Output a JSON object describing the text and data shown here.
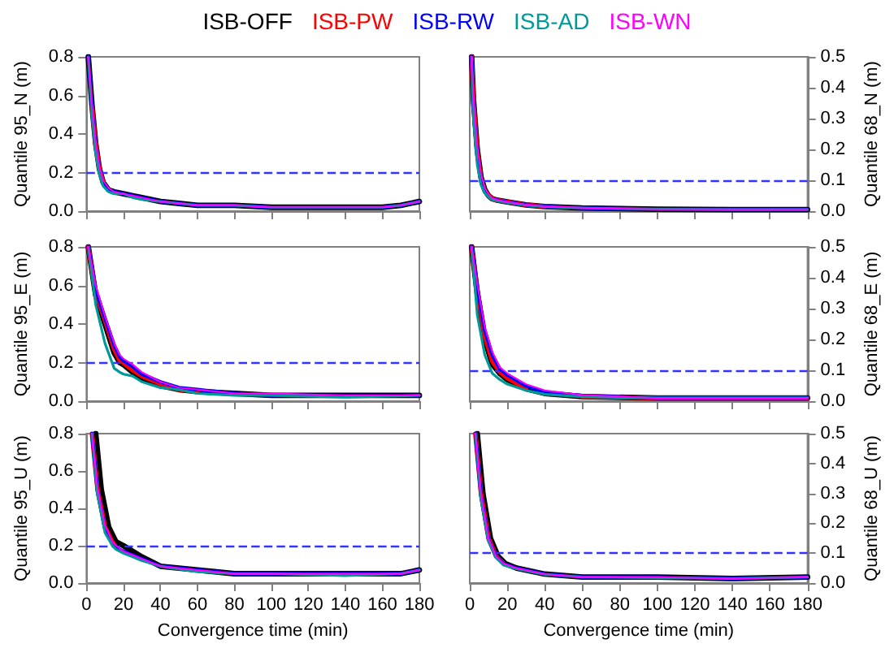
{
  "chart_data": [
    {
      "type": "line",
      "ylabel": "Quantile 95_N (m)",
      "xlim": [
        0,
        180
      ],
      "xticks": [
        0,
        20,
        40,
        60,
        80,
        100,
        120,
        140,
        160,
        180
      ],
      "ylim": [
        0,
        0.8
      ],
      "yticks": [
        {
          "value": 0,
          "label": "0.0"
        },
        {
          "value": 0.2,
          "label": "0.2"
        },
        {
          "value": 0.4,
          "label": "0.4"
        },
        {
          "value": 0.6,
          "label": "0.6"
        },
        {
          "value": 0.8,
          "label": "0.8"
        }
      ],
      "tick_labels": "y",
      "grid": false,
      "legend": "top",
      "line_style": "solid",
      "ref_lines": [
        {
          "axis": "y",
          "value": 0.2,
          "color": "#3333ff",
          "line_style": "dashed"
        }
      ],
      "series": [
        {
          "name": "ISB-OFF",
          "color": "#000000",
          "x": [
            1,
            3,
            5,
            7,
            9,
            12,
            15,
            20,
            25,
            30,
            40,
            50,
            60,
            80,
            100,
            120,
            140,
            160,
            170,
            180
          ],
          "values": [
            0.8,
            0.55,
            0.35,
            0.22,
            0.15,
            0.11,
            0.1,
            0.09,
            0.08,
            0.07,
            0.05,
            0.04,
            0.03,
            0.03,
            0.02,
            0.02,
            0.02,
            0.02,
            0.03,
            0.05
          ]
        },
        {
          "name": "ISB-PW",
          "color": "#ff0000",
          "x": [
            3,
            5,
            7,
            9
          ],
          "values": [
            0.54,
            0.34,
            0.22,
            0.15
          ]
        },
        {
          "name": "ISB-RW",
          "color": "#0000ff",
          "x": [
            1,
            3,
            5,
            7,
            9,
            12,
            15,
            20,
            25,
            30,
            40,
            50,
            60,
            80,
            100,
            120,
            140,
            160,
            170,
            180
          ],
          "values": [
            0.8,
            0.53,
            0.33,
            0.21,
            0.14,
            0.11,
            0.1,
            0.09,
            0.08,
            0.07,
            0.05,
            0.04,
            0.03,
            0.03,
            0.02,
            0.02,
            0.02,
            0.02,
            0.03,
            0.05
          ]
        },
        {
          "name": "ISB-AD",
          "color": "#009999",
          "x": [
            1,
            3,
            5,
            7,
            9,
            12,
            15,
            20,
            25,
            30,
            40,
            50,
            60,
            80,
            100,
            120,
            140,
            160,
            170,
            180
          ],
          "values": [
            0.8,
            0.5,
            0.3,
            0.19,
            0.13,
            0.1,
            0.09,
            0.09,
            0.07,
            0.06,
            0.05,
            0.04,
            0.03,
            0.03,
            0.02,
            0.02,
            0.02,
            0.02,
            0.03,
            0.05
          ]
        },
        {
          "name": "ISB-WN",
          "color": "#ff00ff",
          "x": [
            1,
            3,
            5,
            7,
            9,
            12,
            15,
            20,
            25,
            30,
            40,
            50,
            60,
            80,
            100,
            120,
            140,
            160,
            170,
            180
          ],
          "values": [
            0.8,
            0.56,
            0.36,
            0.23,
            0.16,
            0.12,
            0.1,
            0.09,
            0.08,
            0.07,
            0.05,
            0.04,
            0.03,
            0.03,
            0.02,
            0.02,
            0.02,
            0.02,
            0.03,
            0.05
          ]
        }
      ]
    },
    {
      "type": "line",
      "y2label": "Quantile 68_N (m)",
      "xlim": [
        0,
        180
      ],
      "xticks": [
        0,
        20,
        40,
        60,
        80,
        100,
        120,
        140,
        160,
        180
      ],
      "y2lim": [
        0,
        0.5
      ],
      "y2ticks": [
        {
          "value": 0,
          "label": "0.0"
        },
        {
          "value": 0.1,
          "label": "0.1"
        },
        {
          "value": 0.2,
          "label": "0.2"
        },
        {
          "value": 0.3,
          "label": "0.3"
        },
        {
          "value": 0.4,
          "label": "0.4"
        },
        {
          "value": 0.5,
          "label": "0.5"
        }
      ],
      "tick_labels": "y",
      "grid": false,
      "line_style": "solid",
      "ref_lines": [
        {
          "axis": "y2",
          "value": 0.1,
          "color": "#3333ff",
          "line_style": "dashed"
        }
      ],
      "series": [
        {
          "color": "#000000",
          "axis": "y2",
          "x": [
            1,
            2,
            4,
            6,
            8,
            10,
            12,
            15,
            20,
            30,
            40,
            60,
            80,
            100,
            140,
            180
          ],
          "values": [
            0.5,
            0.36,
            0.2,
            0.11,
            0.07,
            0.05,
            0.04,
            0.035,
            0.03,
            0.02,
            0.015,
            0.01,
            0.008,
            0.006,
            0.005,
            0.005
          ]
        },
        {
          "color": "#ff0000",
          "axis": "y2",
          "x": [
            1,
            2,
            4,
            6,
            8,
            10,
            12,
            15,
            20,
            30,
            40
          ],
          "values": [
            0.5,
            0.35,
            0.19,
            0.1,
            0.065,
            0.05,
            0.04,
            0.035,
            0.03,
            0.02,
            0.015
          ]
        },
        {
          "color": "#0000ff",
          "axis": "y2",
          "x": [
            1,
            2,
            4,
            6,
            8,
            10,
            12,
            15,
            20,
            30,
            40,
            60,
            80,
            100,
            140,
            180
          ],
          "values": [
            0.5,
            0.33,
            0.18,
            0.095,
            0.062,
            0.048,
            0.04,
            0.035,
            0.029,
            0.02,
            0.015,
            0.01,
            0.008,
            0.006,
            0.005,
            0.005
          ]
        },
        {
          "color": "#009999",
          "axis": "y2",
          "x": [
            1,
            2,
            4,
            6,
            8,
            10,
            12,
            15,
            20,
            30,
            40,
            60,
            80,
            100,
            140,
            180
          ],
          "values": [
            0.5,
            0.3,
            0.15,
            0.085,
            0.058,
            0.045,
            0.037,
            0.033,
            0.028,
            0.019,
            0.014,
            0.01,
            0.008,
            0.006,
            0.005,
            0.005
          ]
        },
        {
          "color": "#ff00ff",
          "axis": "y2",
          "x": [
            1,
            2,
            4,
            6,
            8,
            10,
            12,
            15,
            20,
            30,
            40,
            60,
            80,
            100,
            140,
            180
          ],
          "values": [
            0.5,
            0.37,
            0.21,
            0.12,
            0.075,
            0.055,
            0.042,
            0.036,
            0.03,
            0.021,
            0.016,
            0.011,
            0.008,
            0.006,
            0.006,
            0.006
          ]
        }
      ]
    },
    {
      "type": "line",
      "ylabel": "Quantile 95_E (m)",
      "xlim": [
        0,
        180
      ],
      "xticks": [
        0,
        20,
        40,
        60,
        80,
        100,
        120,
        140,
        160,
        180
      ],
      "ylim": [
        0,
        0.8
      ],
      "yticks": [
        {
          "value": 0,
          "label": "0.0"
        },
        {
          "value": 0.2,
          "label": "0.2"
        },
        {
          "value": 0.4,
          "label": "0.4"
        },
        {
          "value": 0.6,
          "label": "0.6"
        },
        {
          "value": 0.8,
          "label": "0.8"
        }
      ],
      "tick_labels": "y",
      "grid": false,
      "line_style": "solid",
      "ref_lines": [
        {
          "axis": "y",
          "value": 0.2,
          "color": "#3333ff",
          "line_style": "dashed"
        }
      ],
      "series": [
        {
          "color": "#000000",
          "x": [
            1,
            5,
            10,
            15,
            18,
            20,
            25,
            30,
            40,
            50,
            60,
            80,
            100,
            140,
            180
          ],
          "values": [
            0.8,
            0.55,
            0.4,
            0.25,
            0.2,
            0.19,
            0.15,
            0.12,
            0.08,
            0.06,
            0.05,
            0.04,
            0.03,
            0.03,
            0.03
          ]
        },
        {
          "color": "#ff0000",
          "x": [
            1,
            5,
            10,
            15,
            18,
            20,
            25,
            30,
            40,
            50,
            60
          ],
          "values": [
            0.8,
            0.56,
            0.42,
            0.27,
            0.21,
            0.2,
            0.16,
            0.13,
            0.09,
            0.06,
            0.05
          ]
        },
        {
          "color": "#0000ff",
          "x": [
            1,
            5,
            10,
            15,
            18,
            20,
            25,
            30,
            40,
            50,
            60,
            80,
            100,
            140,
            180
          ],
          "values": [
            0.8,
            0.58,
            0.43,
            0.29,
            0.23,
            0.21,
            0.18,
            0.14,
            0.1,
            0.07,
            0.06,
            0.04,
            0.03,
            0.03,
            0.03
          ]
        },
        {
          "color": "#009999",
          "x": [
            1,
            5,
            10,
            15,
            18,
            20,
            25,
            30,
            40,
            50,
            60,
            80,
            100,
            140,
            180
          ],
          "values": [
            0.8,
            0.5,
            0.3,
            0.17,
            0.15,
            0.14,
            0.13,
            0.1,
            0.07,
            0.06,
            0.04,
            0.03,
            0.03,
            0.02,
            0.03
          ]
        },
        {
          "color": "#ff00ff",
          "x": [
            1,
            5,
            10,
            15,
            18,
            20,
            25,
            30,
            40,
            50,
            60,
            80,
            100,
            140,
            180
          ],
          "values": [
            0.8,
            0.6,
            0.44,
            0.3,
            0.24,
            0.22,
            0.19,
            0.15,
            0.1,
            0.07,
            0.06,
            0.04,
            0.04,
            0.03,
            0.03
          ]
        }
      ]
    },
    {
      "type": "line",
      "y2label": "Quantile 68_E (m)",
      "xlim": [
        0,
        180
      ],
      "xticks": [
        0,
        20,
        40,
        60,
        80,
        100,
        120,
        140,
        160,
        180
      ],
      "y2lim": [
        0,
        0.5
      ],
      "y2ticks": [
        {
          "value": 0,
          "label": "0.0"
        },
        {
          "value": 0.1,
          "label": "0.1"
        },
        {
          "value": 0.2,
          "label": "0.2"
        },
        {
          "value": 0.3,
          "label": "0.3"
        },
        {
          "value": 0.4,
          "label": "0.4"
        },
        {
          "value": 0.5,
          "label": "0.5"
        }
      ],
      "tick_labels": "y",
      "grid": false,
      "line_style": "solid",
      "ref_lines": [
        {
          "axis": "y2",
          "value": 0.1,
          "color": "#3333ff",
          "line_style": "dashed"
        }
      ],
      "series": [
        {
          "color": "#000000",
          "axis": "y2",
          "x": [
            1,
            4,
            8,
            12,
            16,
            20,
            30,
            40,
            60,
            100,
            140,
            180
          ],
          "values": [
            0.5,
            0.35,
            0.2,
            0.12,
            0.09,
            0.07,
            0.04,
            0.025,
            0.015,
            0.01,
            0.01,
            0.01
          ]
        },
        {
          "color": "#ff0000",
          "axis": "y2",
          "x": [
            1,
            4,
            8,
            12,
            16,
            20,
            30,
            40,
            60,
            100,
            140,
            180
          ],
          "values": [
            0.5,
            0.36,
            0.21,
            0.13,
            0.095,
            0.075,
            0.04,
            null,
            0.015,
            0.01,
            0.01,
            0.01
          ]
        },
        {
          "color": "#0000ff",
          "axis": "y2",
          "x": [
            1,
            4,
            8,
            12,
            16,
            20,
            30,
            40,
            60,
            100,
            140,
            180
          ],
          "values": [
            0.5,
            0.37,
            0.23,
            0.15,
            0.105,
            0.085,
            0.05,
            0.03,
            0.018,
            0.01,
            0.01,
            0.01
          ]
        },
        {
          "color": "#009999",
          "axis": "y2",
          "x": [
            1,
            4,
            8,
            12,
            16,
            20,
            30,
            40,
            60,
            100,
            140,
            180
          ],
          "values": [
            0.5,
            0.28,
            0.15,
            0.09,
            0.07,
            0.055,
            0.035,
            0.022,
            0.014,
            0.01,
            0.01,
            0.01
          ]
        },
        {
          "color": "#ff00ff",
          "axis": "y2",
          "x": [
            1,
            4,
            8,
            12,
            16,
            20,
            30,
            40,
            60,
            100,
            140,
            180
          ],
          "values": [
            0.5,
            0.38,
            0.24,
            0.16,
            0.11,
            0.09,
            0.055,
            0.035,
            0.02,
            0.01,
            0.01,
            0.01
          ]
        }
      ]
    },
    {
      "type": "line",
      "ylabel": "Quantile 95_U (m)",
      "xlabel": "Convergence time (min)",
      "xlim": [
        0,
        180
      ],
      "xticks": [
        0,
        20,
        40,
        60,
        80,
        100,
        120,
        140,
        160,
        180
      ],
      "ylim": [
        0,
        0.8
      ],
      "yticks": [
        {
          "value": 0,
          "label": "0.0"
        },
        {
          "value": 0.2,
          "label": "0.2"
        },
        {
          "value": 0.4,
          "label": "0.4"
        },
        {
          "value": 0.6,
          "label": "0.6"
        },
        {
          "value": 0.8,
          "label": "0.8"
        }
      ],
      "grid": false,
      "line_style": "solid",
      "ref_lines": [
        {
          "axis": "y",
          "value": 0.2,
          "color": "#3333ff",
          "line_style": "dashed"
        }
      ],
      "series": [
        {
          "color": "#000000",
          "x": [
            5,
            8,
            12,
            16,
            20,
            25,
            30,
            40,
            60,
            80,
            100,
            140,
            170,
            180
          ],
          "values": [
            0.8,
            0.5,
            0.3,
            0.22,
            0.2,
            0.17,
            0.14,
            0.09,
            0.07,
            0.05,
            0.05,
            0.05,
            0.05,
            0.07
          ]
        },
        {
          "color": "#ff0000",
          "x": [
            3,
            6,
            10,
            14,
            16
          ],
          "values": [
            0.8,
            0.5,
            0.3,
            0.22,
            0.19
          ]
        },
        {
          "color": "#0000ff",
          "x": [
            3,
            6,
            10,
            14,
            16,
            20,
            25,
            30,
            40,
            60,
            80,
            100,
            140,
            170,
            180
          ],
          "values": [
            0.8,
            0.49,
            0.29,
            0.21,
            0.19,
            0.17,
            0.15,
            0.13,
            0.09,
            0.07,
            0.05,
            0.05,
            0.05,
            0.05,
            0.07
          ]
        },
        {
          "color": "#009999",
          "x": [
            3,
            6,
            10,
            14,
            16,
            20,
            25,
            30,
            40,
            60,
            80,
            100,
            140,
            170,
            180
          ],
          "values": [
            0.8,
            0.47,
            0.27,
            0.2,
            0.18,
            0.16,
            0.14,
            0.12,
            0.09,
            0.06,
            0.05,
            0.05,
            0.04,
            0.05,
            0.07
          ]
        },
        {
          "color": "#ff00ff",
          "x": [
            3,
            6,
            10,
            14,
            16,
            20,
            25,
            30,
            40,
            60,
            80,
            100,
            140,
            170,
            180
          ],
          "values": [
            0.8,
            0.51,
            0.31,
            0.22,
            0.2,
            0.17,
            0.15,
            0.13,
            0.09,
            0.07,
            0.05,
            0.05,
            0.05,
            0.05,
            0.07
          ]
        }
      ]
    },
    {
      "type": "line",
      "y2label": "Quantile 68_U (m)",
      "xlabel": "Convergence time (min)",
      "xlim": [
        0,
        180
      ],
      "xticks": [
        0,
        20,
        40,
        60,
        80,
        100,
        120,
        140,
        160,
        180
      ],
      "y2lim": [
        0,
        0.5
      ],
      "y2ticks": [
        {
          "value": 0,
          "label": "0.0"
        },
        {
          "value": 0.1,
          "label": "0.1"
        },
        {
          "value": 0.2,
          "label": "0.2"
        },
        {
          "value": 0.3,
          "label": "0.3"
        },
        {
          "value": 0.4,
          "label": "0.4"
        },
        {
          "value": 0.5,
          "label": "0.5"
        }
      ],
      "grid": false,
      "line_style": "solid",
      "ref_lines": [
        {
          "axis": "y2",
          "value": 0.1,
          "color": "#3333ff",
          "line_style": "dashed"
        }
      ],
      "series": [
        {
          "color": "#000000",
          "axis": "y2",
          "x": [
            4,
            7,
            11,
            15,
            19,
            25,
            40,
            60,
            100,
            140,
            180
          ],
          "values": [
            0.5,
            0.3,
            0.15,
            0.09,
            0.065,
            0.05,
            0.03,
            0.02,
            0.02,
            0.015,
            0.02
          ]
        },
        {
          "color": "#ff0000",
          "axis": "y2",
          "x": [
            3,
            6,
            10,
            14,
            18
          ],
          "values": [
            0.5,
            0.3,
            0.15,
            0.09,
            0.065
          ]
        },
        {
          "color": "#0000ff",
          "axis": "y2",
          "x": [
            3,
            6,
            10,
            14,
            18,
            25,
            40,
            60,
            100,
            140,
            180
          ],
          "values": [
            0.5,
            0.29,
            0.145,
            0.088,
            0.064,
            0.05,
            0.03,
            0.02,
            0.02,
            0.015,
            0.02
          ]
        },
        {
          "color": "#009999",
          "axis": "y2",
          "x": [
            3,
            6,
            10,
            14,
            18,
            25,
            40,
            60,
            100,
            140,
            180
          ],
          "values": [
            0.5,
            0.28,
            0.14,
            0.085,
            0.06,
            0.048,
            0.029,
            0.02,
            0.018,
            0.015,
            0.02
          ]
        },
        {
          "color": "#ff00ff",
          "axis": "y2",
          "x": [
            3,
            6,
            10,
            14,
            18,
            25,
            40,
            60,
            100,
            140,
            180
          ],
          "values": [
            0.5,
            0.3,
            0.15,
            0.09,
            0.066,
            0.05,
            0.03,
            0.02,
            0.02,
            0.015,
            0.02
          ]
        }
      ]
    }
  ]
}
